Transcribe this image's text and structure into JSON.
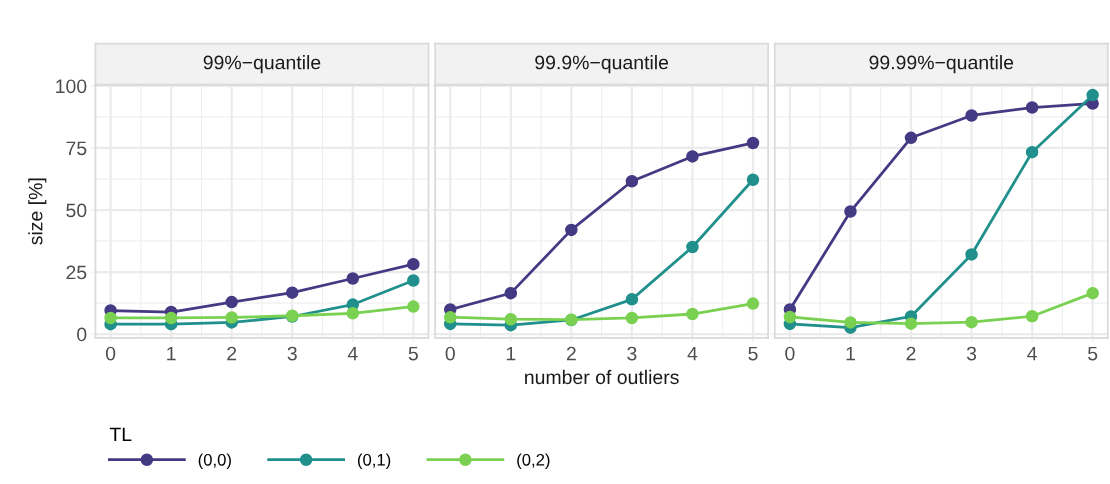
{
  "chart_data": [
    {
      "type": "line",
      "title": "99%−quantile",
      "ylabel": "size [%]",
      "x": [
        0,
        1,
        2,
        3,
        4,
        5
      ],
      "xlim": [
        -0.25,
        5.25
      ],
      "xticks": [
        0,
        1,
        2,
        3,
        4,
        5
      ],
      "ylim": [
        -1.5,
        100.5
      ],
      "yticks": [
        0,
        25,
        50,
        75,
        100
      ],
      "grid": true,
      "marker": "circle",
      "line_style": "solid",
      "legend": "bottom",
      "legend_title": "TL",
      "series": [
        {
          "name": "(0,0)",
          "color": "#443a83",
          "values": [
            9.5,
            8.9,
            12.9,
            16.7,
            22.4,
            28.2
          ]
        },
        {
          "name": "(0,1)",
          "color": "#21908c",
          "values": [
            4,
            4,
            4.7,
            7.1,
            11.9,
            21.6
          ]
        },
        {
          "name": "(0,2)",
          "color": "#7ad151",
          "values": [
            6.5,
            6.5,
            6.7,
            7.4,
            8.4,
            11.1
          ]
        }
      ]
    },
    {
      "type": "line",
      "title": "99.9%−quantile",
      "xlabel": "number of outliers",
      "x": [
        0,
        1,
        2,
        3,
        4,
        5
      ],
      "xlim": [
        -0.25,
        5.25
      ],
      "xticks": [
        0,
        1,
        2,
        3,
        4,
        5
      ],
      "ylim": [
        -1.5,
        100.5
      ],
      "yticks": [
        0,
        25,
        50,
        75,
        100
      ],
      "tick_labels": "x",
      "grid": true,
      "marker": "circle",
      "line_style": "solid",
      "series": [
        {
          "color": "#443a83",
          "values": [
            9.9,
            16.5,
            42,
            61.6,
            71.6,
            77
          ]
        },
        {
          "color": "#21908c",
          "values": [
            4.1,
            3.6,
            5.7,
            14,
            35.1,
            62.2
          ]
        },
        {
          "color": "#7ad151",
          "values": [
            6.8,
            6,
            5.8,
            6.5,
            8.1,
            12.3
          ]
        }
      ]
    },
    {
      "type": "line",
      "title": "99.99%−quantile",
      "x": [
        0,
        1,
        2,
        3,
        4,
        5
      ],
      "xlim": [
        -0.25,
        5.25
      ],
      "xticks": [
        0,
        1,
        2,
        3,
        4,
        5
      ],
      "ylim": [
        -1.5,
        100.5
      ],
      "yticks": [
        0,
        25,
        50,
        75,
        100
      ],
      "tick_labels": "x",
      "grid": true,
      "marker": "circle",
      "line_style": "solid",
      "series": [
        {
          "color": "#443a83",
          "values": [
            9.9,
            49.4,
            79.1,
            88.1,
            91.3,
            92.9
          ]
        },
        {
          "color": "#21908c",
          "values": [
            4.1,
            2.6,
            7.1,
            32.1,
            73.3,
            96.3
          ]
        },
        {
          "color": "#7ad151",
          "values": [
            6.9,
            4.7,
            4.2,
            4.8,
            7.2,
            16.5
          ]
        }
      ]
    }
  ]
}
